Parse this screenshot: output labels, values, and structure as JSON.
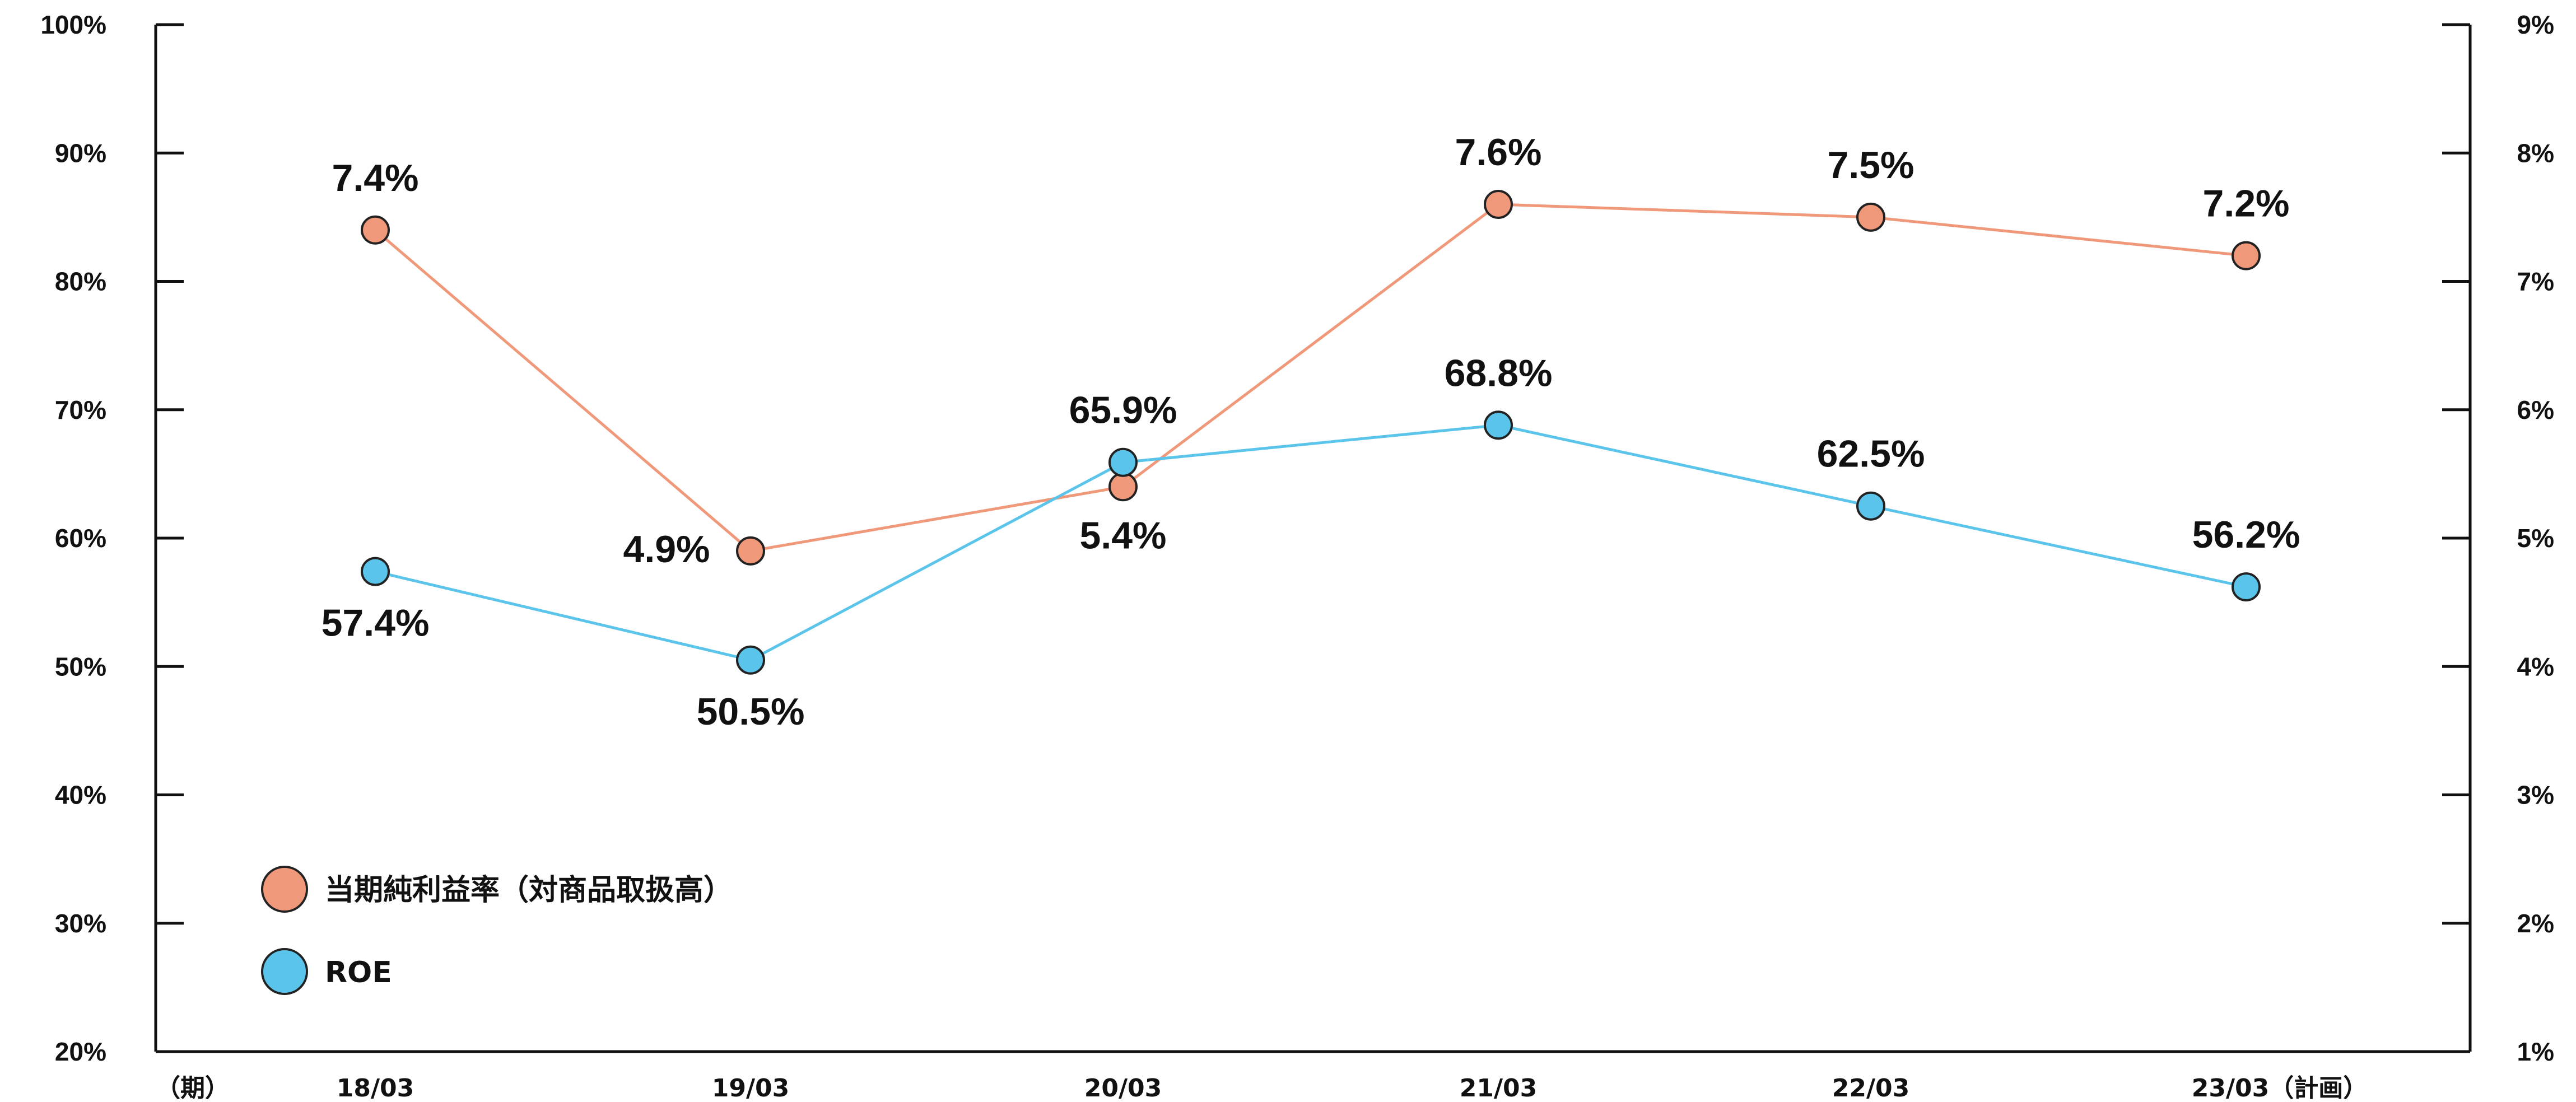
{
  "chart_data": {
    "type": "line",
    "x_unit_label": "（期）",
    "categories": [
      "18/03",
      "19/03",
      "20/03",
      "21/03",
      "22/03",
      "23/03（計画）"
    ],
    "y_left": {
      "ylim": [
        20,
        100
      ],
      "ticks": [
        "20%",
        "30%",
        "40%",
        "50%",
        "60%",
        "70%",
        "80%",
        "90%",
        "100%"
      ]
    },
    "y_right": {
      "ylim": [
        1,
        9
      ],
      "ticks": [
        "1%",
        "2%",
        "3%",
        "4%",
        "5%",
        "6%",
        "7%",
        "8%",
        "9%"
      ]
    },
    "series": [
      {
        "name": "当期純利益率（対商品取扱高）",
        "axis": "right",
        "color": "#f0997a",
        "values": [
          7.4,
          4.9,
          5.4,
          7.6,
          7.5,
          7.2
        ],
        "labels": [
          "7.4%",
          "4.9%",
          "5.4%",
          "7.6%",
          "7.5%",
          "7.2%"
        ]
      },
      {
        "name": "ROE",
        "axis": "left",
        "color": "#5bc4ea",
        "values": [
          57.4,
          50.5,
          65.9,
          68.8,
          62.5,
          56.2
        ],
        "labels": [
          "57.4%",
          "50.5%",
          "65.9%",
          "68.8%",
          "62.5%",
          "56.2%"
        ]
      }
    ],
    "legend_position": "bottom-left",
    "grid": false
  }
}
